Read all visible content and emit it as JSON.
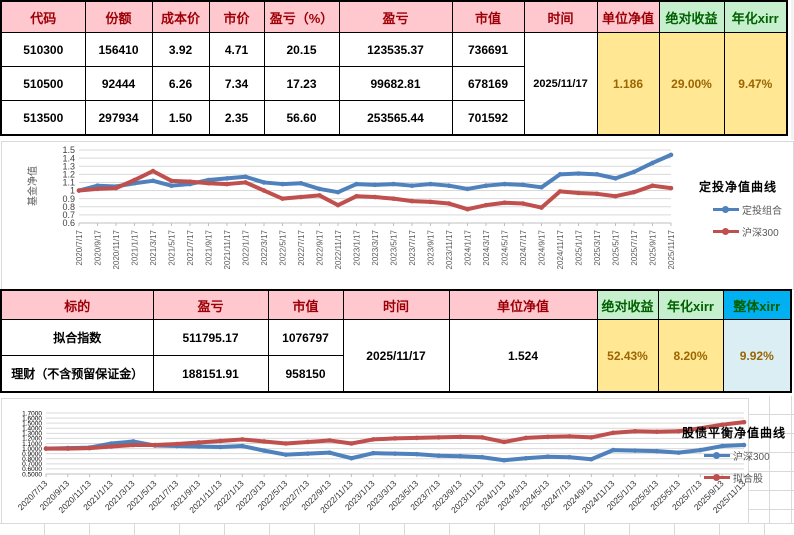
{
  "table1": {
    "headers": [
      "代码",
      "份额",
      "成本价",
      "市价",
      "盈亏（%）",
      "盈亏",
      "市值",
      "时间",
      "单位净值",
      "绝对收益",
      "年化xirr"
    ],
    "rows": [
      [
        "510300",
        "156410",
        "3.92",
        "4.71",
        "20.15",
        "123535.37",
        "736691"
      ],
      [
        "510500",
        "92444",
        "6.26",
        "7.34",
        "17.23",
        "99682.81",
        "678169"
      ],
      [
        "513500",
        "297934",
        "1.50",
        "2.35",
        "56.60",
        "253565.44",
        "701592"
      ]
    ],
    "merged": {
      "time": "2025/11/17",
      "nav": "1.186",
      "abs_return": "29.00%",
      "xirr": "9.47%"
    }
  },
  "table2": {
    "headers": [
      "标的",
      "盈亏",
      "市值",
      "时间",
      "单位净值",
      "绝对收益",
      "年化xirr",
      "整体xirr"
    ],
    "rows": [
      [
        "拟合指数",
        "511795.17",
        "1076797"
      ],
      [
        "理财（不含预留保证金）",
        "188151.91",
        "958150"
      ]
    ],
    "merged": {
      "time": "2025/11/17",
      "nav": "1.524",
      "abs_return": "52.43%",
      "xirr": "8.20%",
      "overall_xirr": "9.92%"
    }
  },
  "colors": {
    "header_pink_bg": "#FFC7CE",
    "header_red_text": "#9C0006",
    "header_green_bg": "#C6EFCE",
    "header_green_text": "#006100",
    "header_cyan_bg": "#00B0F0",
    "cell_yellow_bg": "#FFE794",
    "cell_orange_text": "#9C6500",
    "cell_lightblue_bg": "#DAEEF3",
    "line_blue": "#4F81BD",
    "line_red": "#C0504D",
    "grid_gray": "#D9D9D9"
  },
  "chart_data": [
    {
      "type": "line",
      "title": "定投净值曲线",
      "ylabel": "基金净值",
      "ylim": [
        0.6,
        1.5
      ],
      "grid": true,
      "legend_position": "right",
      "ytick_labels": [
        "1.5",
        "1.4",
        "1.3",
        "1.2",
        "1.1",
        "1",
        "0.9",
        "0.8",
        "0.7",
        "0.6"
      ],
      "x": [
        "2020/7/17",
        "2020/9/17",
        "2020/11/17",
        "2021/1/17",
        "2021/3/17",
        "2021/5/17",
        "2021/7/17",
        "2021/9/17",
        "2021/11/17",
        "2022/1/17",
        "2022/3/17",
        "2022/5/17",
        "2022/7/17",
        "2022/9/17",
        "2022/11/17",
        "2023/1/17",
        "2023/3/17",
        "2023/5/17",
        "2023/7/17",
        "2023/9/17",
        "2023/11/17",
        "2024/1/17",
        "2024/3/17",
        "2024/5/17",
        "2024/7/17",
        "2024/9/17",
        "2024/11/17",
        "2025/1/17",
        "2025/3/17",
        "2025/5/17",
        "2025/7/17",
        "2025/9/17",
        "2025/11/17"
      ],
      "series": [
        {
          "name": "定投组合",
          "color": "#4F81BD",
          "values": [
            1.0,
            1.06,
            1.05,
            1.09,
            1.12,
            1.06,
            1.08,
            1.13,
            1.15,
            1.17,
            1.1,
            1.08,
            1.09,
            1.02,
            0.98,
            1.08,
            1.07,
            1.08,
            1.06,
            1.08,
            1.06,
            1.02,
            1.06,
            1.08,
            1.07,
            1.04,
            1.2,
            1.21,
            1.2,
            1.15,
            1.23,
            1.34,
            1.44
          ]
        },
        {
          "name": "沪深300",
          "color": "#C0504D",
          "values": [
            1.0,
            1.02,
            1.03,
            1.13,
            1.24,
            1.12,
            1.11,
            1.09,
            1.08,
            1.1,
            1.0,
            0.9,
            0.92,
            0.94,
            0.82,
            0.93,
            0.92,
            0.9,
            0.87,
            0.86,
            0.84,
            0.77,
            0.82,
            0.85,
            0.84,
            0.79,
            0.99,
            0.97,
            0.96,
            0.93,
            0.98,
            1.06,
            1.03
          ]
        }
      ]
    },
    {
      "type": "line",
      "title": "股债平衡净值曲线",
      "ylabel": "",
      "ylim": [
        0.5,
        1.7
      ],
      "grid": true,
      "legend_position": "right",
      "ytick_labels": [
        "1.7000",
        "1.6000",
        "1.5000",
        "1.4000",
        "1.3000",
        "1.2000",
        "1.1000",
        "1.0000",
        "0.9000",
        "0.8000",
        "0.7000",
        "0.6000",
        "0.5000"
      ],
      "x": [
        "2020/7/13",
        "2020/9/13",
        "2020/11/13",
        "2021/1/13",
        "2021/3/13",
        "2021/5/13",
        "2021/7/13",
        "2021/9/13",
        "2021/11/13",
        "2022/1/13",
        "2022/3/13",
        "2022/5/13",
        "2022/7/13",
        "2022/9/13",
        "2022/11/13",
        "2023/1/13",
        "2023/3/13",
        "2023/5/13",
        "2023/7/13",
        "2023/9/13",
        "2023/11/13",
        "2024/1/13",
        "2024/3/13",
        "2024/5/13",
        "2024/7/13",
        "2024/9/13",
        "2024/11/13",
        "2025/1/13",
        "2025/3/13",
        "2025/5/13",
        "2025/7/13",
        "2025/9/13",
        "2025/11/13"
      ],
      "series": [
        {
          "name": "沪深300",
          "color": "#4F81BD",
          "values": [
            1.0,
            1.01,
            1.02,
            1.1,
            1.14,
            1.06,
            1.05,
            1.04,
            1.03,
            1.05,
            0.96,
            0.88,
            0.9,
            0.92,
            0.81,
            0.91,
            0.9,
            0.89,
            0.86,
            0.85,
            0.83,
            0.77,
            0.81,
            0.84,
            0.83,
            0.79,
            0.97,
            0.96,
            0.95,
            0.92,
            0.97,
            1.05,
            1.07
          ]
        },
        {
          "name": "拟合股",
          "color": "#C0504D",
          "values": [
            1.0,
            1.0,
            1.01,
            1.04,
            1.07,
            1.07,
            1.09,
            1.12,
            1.15,
            1.18,
            1.14,
            1.1,
            1.13,
            1.16,
            1.1,
            1.18,
            1.2,
            1.21,
            1.22,
            1.23,
            1.22,
            1.13,
            1.21,
            1.23,
            1.24,
            1.22,
            1.31,
            1.34,
            1.33,
            1.34,
            1.4,
            1.47,
            1.52
          ]
        }
      ]
    }
  ]
}
